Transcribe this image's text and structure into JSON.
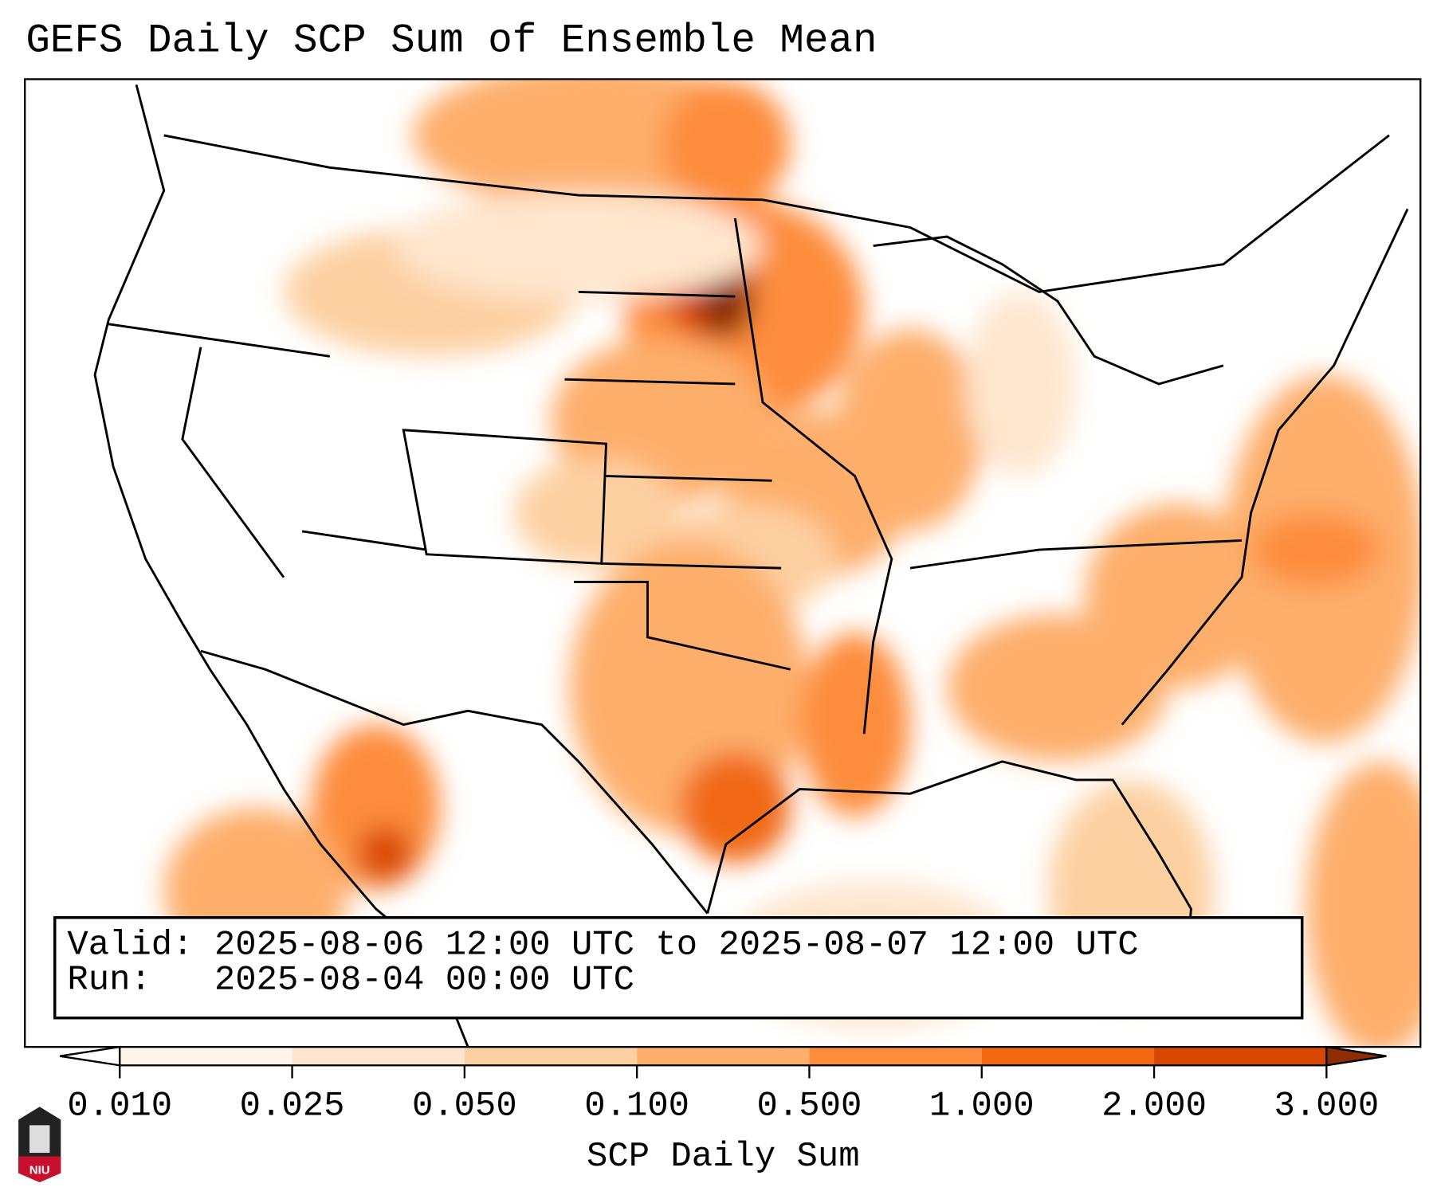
{
  "title": "GEFS Daily SCP Sum of Ensemble Mean",
  "info": {
    "valid_label": "Valid:",
    "valid_value": "2025-08-06 12:00 UTC to 2025-08-07 12:00 UTC",
    "run_label": "Run:  ",
    "run_value": "2025-08-04 00:00 UTC"
  },
  "logo_text": "NIU",
  "chart_data": {
    "type": "heatmap",
    "title": "GEFS Daily SCP Sum of Ensemble Mean",
    "colorbar_label": "SCP Daily Sum",
    "ticks": [
      "0.010",
      "0.025",
      "0.050",
      "0.100",
      "0.500",
      "1.000",
      "2.000",
      "3.000"
    ],
    "bin_colors": [
      "#fff5eb",
      "#fee6ce",
      "#fdd0a2",
      "#fdae6b",
      "#fd8d3c",
      "#f16913",
      "#d94801"
    ],
    "under_color": "#ffffff",
    "over_color": "#8c2d04",
    "extend": "both",
    "max_region": "eastern South Dakota / southern North Dakota"
  }
}
